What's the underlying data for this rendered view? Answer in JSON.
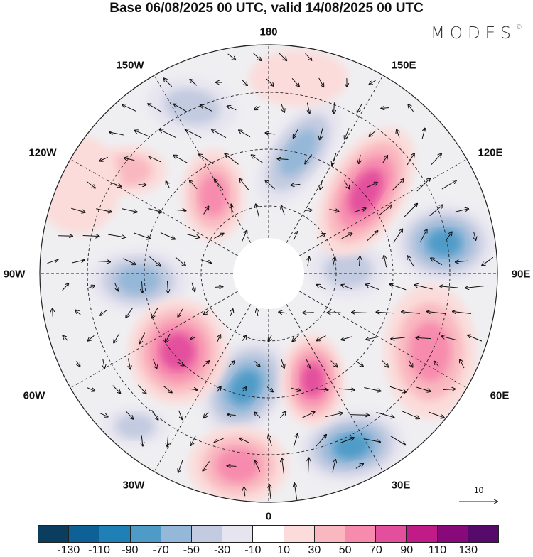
{
  "title": "Base 06/08/2025 00 UTC, valid 14/08/2025 00 UTC",
  "logo": {
    "text": "MODES",
    "mark": "©"
  },
  "longitude_labels": [
    "180",
    "150E",
    "120E",
    "90E",
    "60E",
    "30E",
    "0",
    "30W",
    "60W",
    "90W",
    "120W",
    "150W"
  ],
  "reference_vector": {
    "label": "10"
  },
  "colorbar": {
    "colors": [
      "#0b3d5e",
      "#0e6196",
      "#1f80b8",
      "#4f9bc8",
      "#95b7d8",
      "#c3cbe0",
      "#e6e4ef",
      "#ffffff",
      "#fbdcda",
      "#f9b8bf",
      "#f78bae",
      "#e34f9d",
      "#c01b87",
      "#88097a",
      "#550a6c"
    ],
    "labels": [
      "-130",
      "-110",
      "-90",
      "-70",
      "-50",
      "-30",
      "-10",
      "10",
      "30",
      "50",
      "70",
      "90",
      "110",
      "130"
    ]
  }
}
